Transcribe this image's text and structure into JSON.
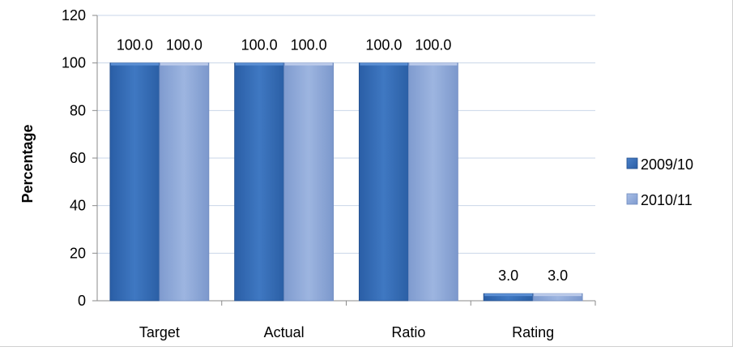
{
  "chart_data": {
    "type": "bar",
    "title": "",
    "xlabel": "",
    "ylabel": "Percentage",
    "ylim": [
      0,
      120
    ],
    "yticks": [
      0,
      20,
      40,
      60,
      80,
      100,
      120
    ],
    "grid": true,
    "legend_position": "right",
    "categories": [
      "Target",
      "Actual",
      "Ratio",
      "Rating"
    ],
    "series": [
      {
        "name": "2009/10",
        "values": [
          100.0,
          100.0,
          100.0,
          3.0
        ],
        "labels": [
          "100.0",
          "100.0",
          "100.0",
          "3.0"
        ],
        "color": "#3a6fb5"
      },
      {
        "name": "2010/11",
        "values": [
          100.0,
          100.0,
          100.0,
          3.0
        ],
        "labels": [
          "100.0",
          "100.0",
          "100.0",
          "3.0"
        ],
        "color": "#8aa6d6"
      }
    ]
  }
}
